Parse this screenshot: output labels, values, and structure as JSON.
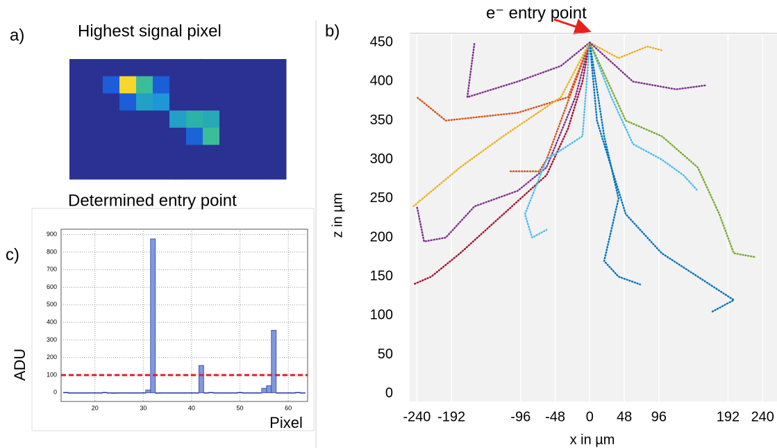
{
  "chart_data": [
    {
      "type": "heatmap",
      "panel_label": "a)",
      "annotations": [
        "Highest signal pixel",
        "Determined entry point"
      ],
      "z": [
        [
          0,
          0,
          0,
          0,
          0,
          0,
          0,
          0,
          0,
          0,
          0,
          0,
          0
        ],
        [
          0,
          0,
          0.2,
          1.0,
          0.6,
          0.2,
          0,
          0,
          0,
          0,
          0,
          0,
          0
        ],
        [
          0,
          0,
          0,
          0.2,
          0.45,
          0.4,
          0,
          0,
          0,
          0,
          0,
          0,
          0
        ],
        [
          0,
          0,
          0,
          0,
          0,
          0,
          0.45,
          0.55,
          0.5,
          0,
          0,
          0,
          0
        ],
        [
          0,
          0,
          0,
          0,
          0,
          0,
          0,
          0.22,
          0.6,
          0,
          0,
          0,
          0
        ],
        [
          0,
          0,
          0,
          0,
          0,
          0,
          0,
          0,
          0,
          0,
          0,
          0,
          0
        ],
        [
          0,
          0,
          0,
          0,
          0,
          0,
          0,
          0,
          0,
          0,
          0,
          0,
          0
        ]
      ]
    },
    {
      "type": "line",
      "panel_label": "b)",
      "annotation": "e⁻ entry point",
      "xlabel": "x in µm",
      "ylabel": "z in µm",
      "xlim": [
        -250,
        260
      ],
      "ylim": [
        -10,
        460
      ],
      "xticks": [
        -240,
        -192,
        -96,
        -48,
        0,
        48,
        96,
        192,
        240
      ],
      "yticks": [
        0,
        50,
        100,
        150,
        200,
        250,
        300,
        350,
        400,
        450
      ],
      "grid": "x",
      "series": [
        {
          "color": "#a2142f",
          "x": [
            0,
            -10,
            -30,
            -60,
            -120,
            -180,
            -220,
            -245
          ],
          "values": [
            450,
            400,
            340,
            280,
            230,
            180,
            150,
            140
          ]
        },
        {
          "color": "#7e2f8e",
          "x": [
            0,
            -20,
            -60,
            -100,
            -160,
            -200,
            -230,
            -240
          ],
          "values": [
            450,
            380,
            290,
            260,
            240,
            200,
            195,
            240
          ]
        },
        {
          "color": "#7e2f8e",
          "x": [
            0,
            -40,
            -100,
            -170,
            -160
          ],
          "values": [
            450,
            420,
            400,
            380,
            450
          ]
        },
        {
          "color": "#d95319",
          "x": [
            0,
            -30,
            -100,
            -200,
            -240
          ],
          "values": [
            450,
            380,
            360,
            350,
            380
          ]
        },
        {
          "color": "#d95319",
          "x": [
            0,
            -60,
            -70,
            -110
          ],
          "values": [
            450,
            300,
            285,
            285
          ]
        },
        {
          "color": "#edb120",
          "x": [
            0,
            -40,
            -120,
            -180,
            -245
          ],
          "values": [
            450,
            380,
            330,
            290,
            240
          ]
        },
        {
          "color": "#edb120",
          "x": [
            0,
            40,
            80,
            100
          ],
          "values": [
            450,
            430,
            445,
            440
          ]
        },
        {
          "color": "#4dbeee",
          "x": [
            0,
            -10,
            -60,
            -90,
            -80,
            -60
          ],
          "values": [
            450,
            330,
            300,
            230,
            200,
            210
          ]
        },
        {
          "color": "#4dbeee",
          "x": [
            0,
            30,
            60,
            100,
            130,
            150
          ],
          "values": [
            450,
            380,
            320,
            300,
            280,
            260
          ]
        },
        {
          "color": "#0072bd",
          "x": [
            0,
            10,
            30,
            50,
            100,
            150,
            200,
            170
          ],
          "values": [
            450,
            350,
            290,
            230,
            180,
            150,
            120,
            105
          ]
        },
        {
          "color": "#0072bd",
          "x": [
            0,
            20,
            40,
            20,
            40,
            70
          ],
          "values": [
            450,
            330,
            250,
            170,
            150,
            140
          ]
        },
        {
          "color": "#77ac30",
          "x": [
            0,
            50,
            100,
            150,
            180,
            200,
            230
          ],
          "values": [
            450,
            350,
            330,
            290,
            230,
            180,
            175
          ]
        },
        {
          "color": "#7e2f8e",
          "x": [
            0,
            60,
            120,
            160
          ],
          "values": [
            450,
            400,
            390,
            395
          ]
        }
      ]
    },
    {
      "type": "histogram",
      "panel_label": "c)",
      "xlabel": "Pixel",
      "ylabel": "ADU",
      "xlim": [
        13,
        64
      ],
      "ylim": [
        -50,
        930
      ],
      "xticks": [
        20,
        30,
        40,
        50,
        60
      ],
      "yticks": [
        0,
        100,
        200,
        300,
        400,
        500,
        600,
        700,
        800,
        900
      ],
      "threshold": 100,
      "threshold_color": "#e0201b",
      "color": "#8098e0",
      "bins": [
        13.5,
        14.5,
        15.5,
        16.5,
        17.5,
        18.5,
        19.5,
        20.5,
        21.5,
        22.5,
        23.5,
        24.5,
        25.5,
        26.5,
        27.5,
        28.5,
        29.5,
        30.5,
        31.5,
        32.5,
        33.5,
        34.5,
        35.5,
        36.5,
        37.5,
        38.5,
        39.5,
        40.5,
        41.5,
        42.5,
        43.5,
        44.5,
        45.5,
        46.5,
        47.5,
        48.5,
        49.5,
        50.5,
        51.5,
        52.5,
        53.5,
        54.5,
        55.5,
        56.5,
        57.5,
        58.5,
        59.5,
        60.5,
        61.5,
        62.5,
        63.5
      ],
      "values": [
        2,
        0,
        -2,
        0,
        0,
        -3,
        0,
        0,
        2,
        0,
        -4,
        0,
        0,
        -2,
        0,
        0,
        0,
        15,
        875,
        -4,
        0,
        -2,
        0,
        0,
        -2,
        0,
        0,
        -2,
        155,
        0,
        2,
        0,
        0,
        -2,
        0,
        0,
        2,
        0,
        0,
        -2,
        0,
        25,
        40,
        355,
        0,
        -2,
        0,
        0,
        2,
        0
      ]
    }
  ]
}
